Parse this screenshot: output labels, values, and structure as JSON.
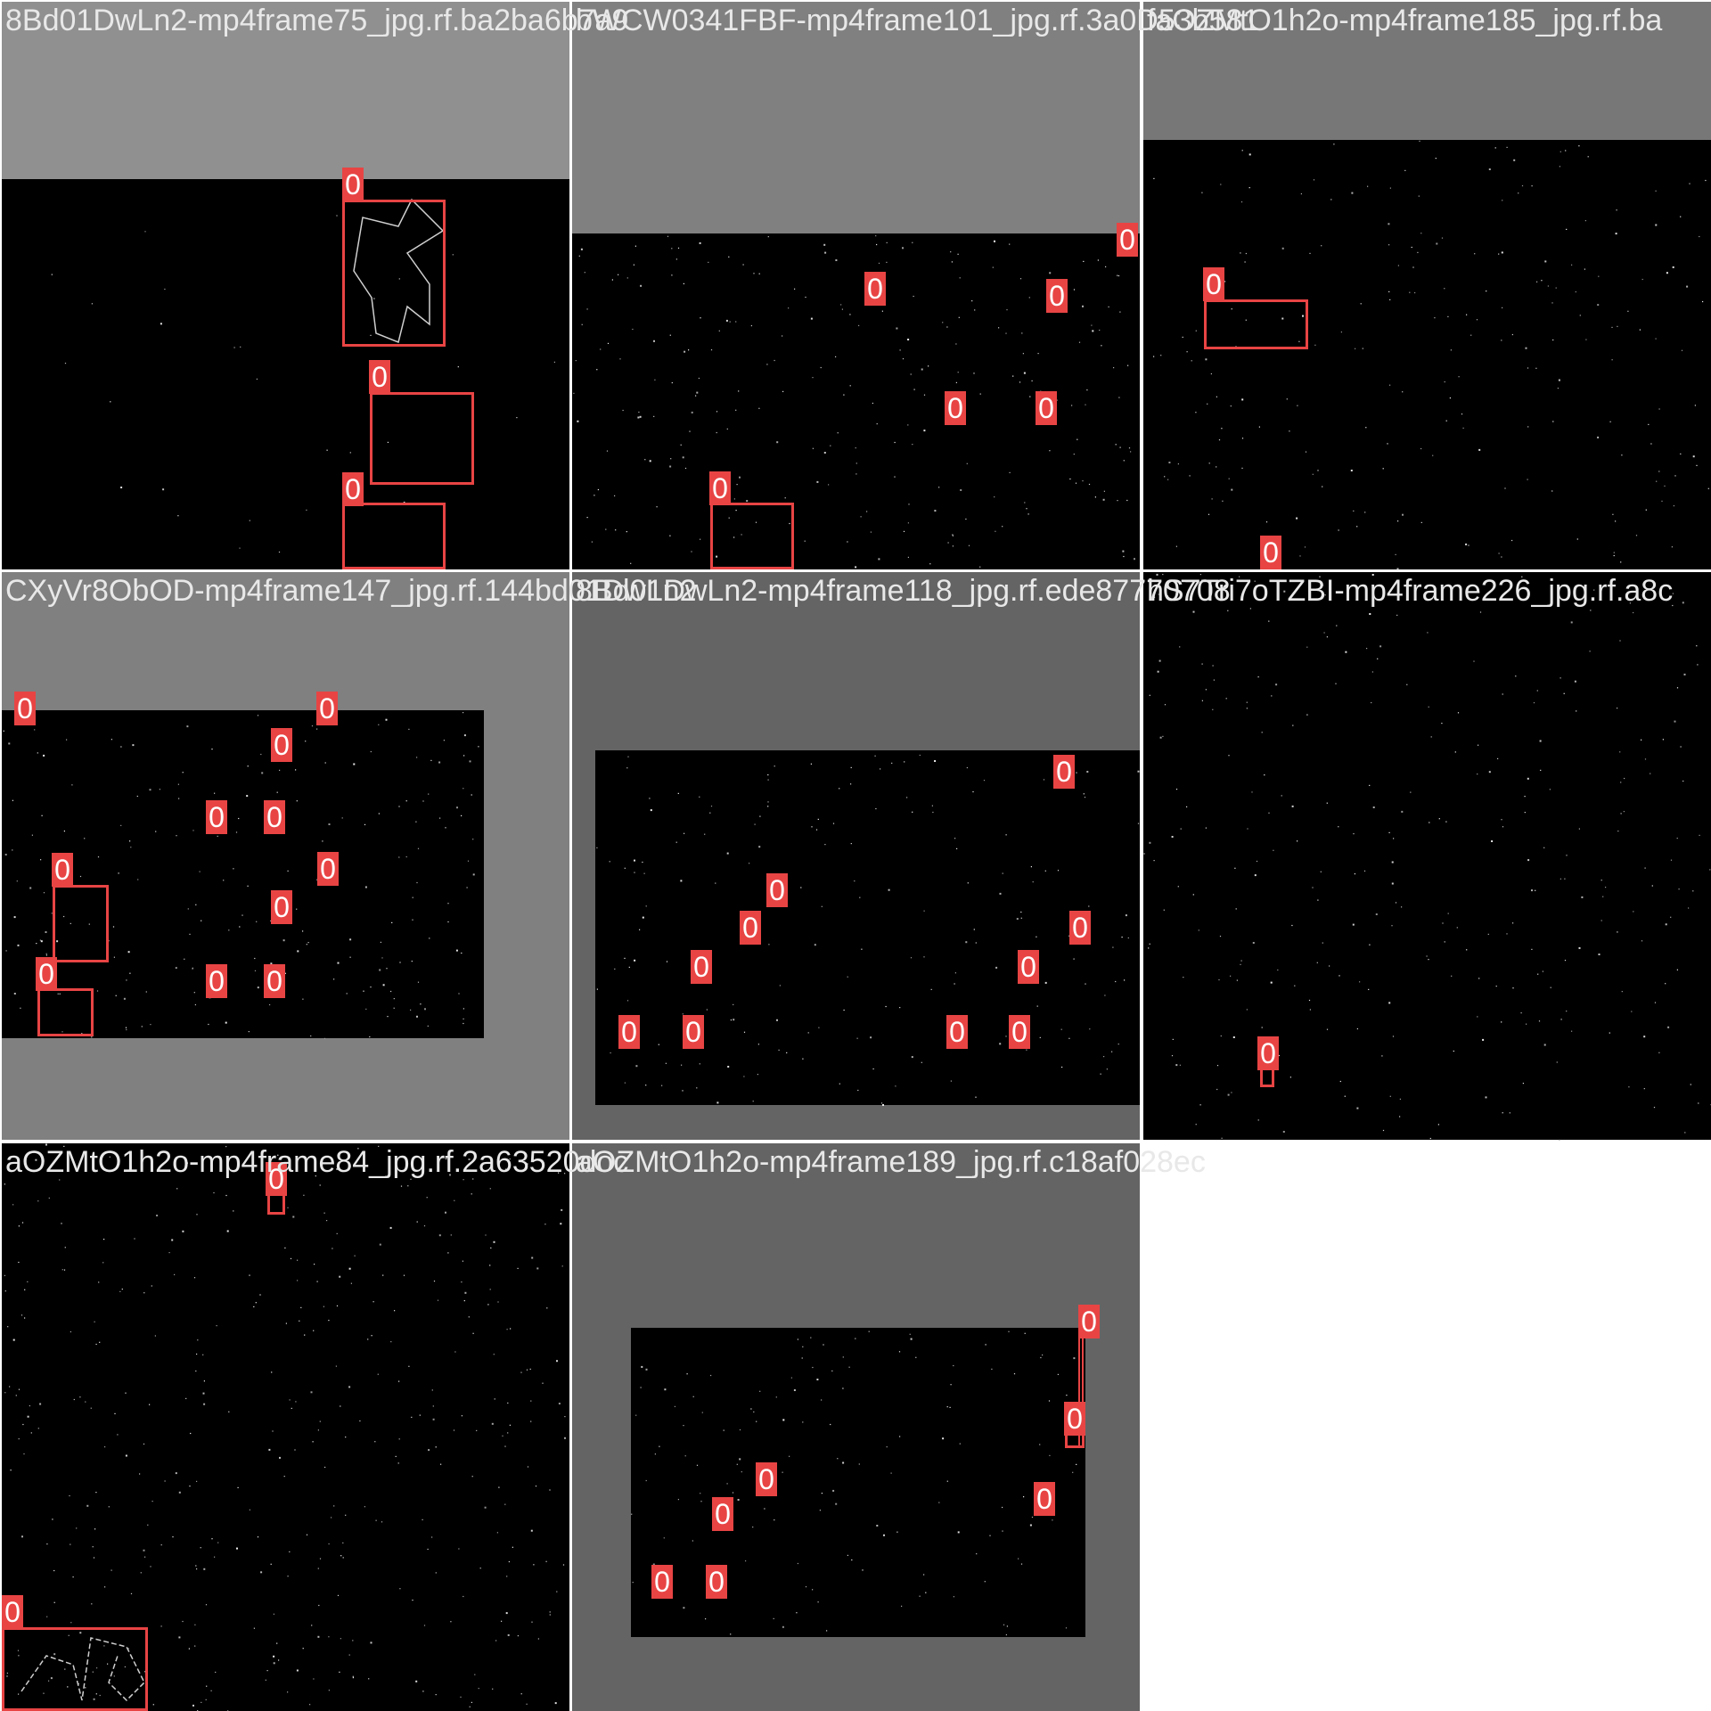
{
  "grid": {
    "tiles": [
      {
        "name": "tile-1",
        "caption": "8Bd01DwLn2-mp4frame75_jpg.rf.ba2ba6b7a9",
        "letterbox_color": "#909090",
        "labels": [
          "0",
          "0",
          "0"
        ]
      },
      {
        "name": "tile-2",
        "caption": "bWCW0341FBF-mp4frame101_jpg.rf.3a0D53b581",
        "letterbox_color": "#808080",
        "labels": [
          "0",
          "0",
          "0",
          "0",
          "0",
          "0"
        ]
      },
      {
        "name": "tile-3",
        "caption": "faOZMtO1h2o-mp4frame185_jpg.rf.ba",
        "letterbox_color": "#777777",
        "labels": [
          "0",
          "0"
        ]
      },
      {
        "name": "tile-4",
        "caption": "CXyVr8ObOD-mp4frame147_jpg.rf.144bd01DwLn2",
        "letterbox_color": "#808080",
        "labels": [
          "0",
          "0",
          "0",
          "0",
          "0",
          "0",
          "0",
          "0",
          "0",
          "0",
          "0"
        ]
      },
      {
        "name": "tile-5",
        "caption": "8Bd01DwLn2-mp4frame118_jpg.rf.ede87770708",
        "letterbox_color": "#646464",
        "labels": [
          "0",
          "0",
          "0",
          "0",
          "0",
          "0",
          "0",
          "0",
          "0",
          "0"
        ]
      },
      {
        "name": "tile-6",
        "caption": "hS7Tri7oTZBI-mp4frame226_jpg.rf.a8c",
        "letterbox_color": "#000000",
        "labels": [
          "0"
        ]
      },
      {
        "name": "tile-7",
        "caption": "aOZMtO1h2o-mp4frame84_jpg.rf.2a63520doc",
        "letterbox_color": "#000000",
        "labels": [
          "0",
          "0"
        ]
      },
      {
        "name": "tile-8",
        "caption": "aOZMtO1h2o-mp4frame189_jpg.rf.c18af028ec",
        "letterbox_color": "#646464",
        "labels": [
          "0",
          "0",
          "0",
          "0",
          "0",
          "0",
          "0"
        ]
      }
    ]
  },
  "colors": {
    "box": "#e84444",
    "caption": "#e8e8e8",
    "background": "#ffffff"
  }
}
